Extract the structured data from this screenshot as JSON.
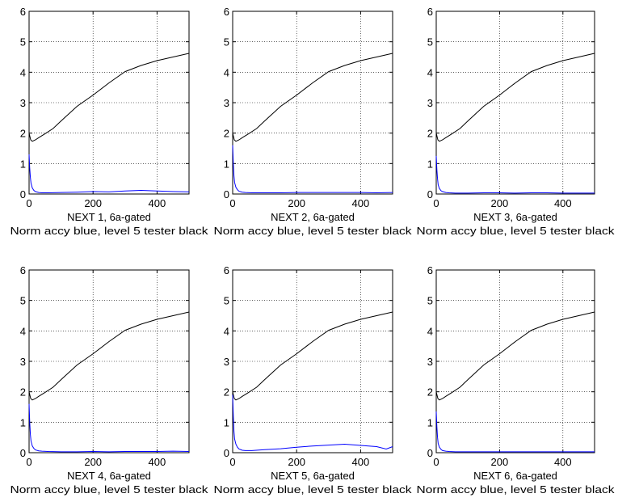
{
  "chart_data": [
    {
      "type": "line",
      "xlabel": "NEXT 1, 6a-gated",
      "xlabel2": "Norm accy blue, level 5 tester black",
      "xlim": [
        0,
        500
      ],
      "ylim": [
        0,
        6
      ],
      "xticks": [
        0,
        200,
        400
      ],
      "yticks": [
        0,
        1,
        2,
        3,
        4,
        5,
        6
      ],
      "grid": true,
      "series": [
        {
          "color": "#000000",
          "x": [
            0,
            5,
            10,
            20,
            30,
            50,
            75,
            100,
            150,
            200,
            250,
            300,
            350,
            400,
            450,
            500
          ],
          "y": [
            2.0,
            1.78,
            1.73,
            1.78,
            1.85,
            1.98,
            2.15,
            2.4,
            2.88,
            3.25,
            3.65,
            4.02,
            4.22,
            4.38,
            4.5,
            4.62
          ]
        },
        {
          "color": "#0000ff",
          "x": [
            0,
            2,
            4,
            6,
            10,
            15,
            20,
            30,
            40,
            60,
            100,
            150,
            200,
            250,
            300,
            350,
            400,
            450,
            500
          ],
          "y": [
            1.3,
            0.85,
            0.55,
            0.35,
            0.2,
            0.12,
            0.08,
            0.05,
            0.04,
            0.04,
            0.05,
            0.06,
            0.08,
            0.07,
            0.1,
            0.12,
            0.1,
            0.08,
            0.07
          ]
        }
      ]
    },
    {
      "type": "line",
      "xlabel": "NEXT 2, 6a-gated",
      "xlabel2": "Norm accy blue, level 5 tester black",
      "xlim": [
        0,
        500
      ],
      "ylim": [
        0,
        6
      ],
      "xticks": [
        0,
        200,
        400
      ],
      "yticks": [
        0,
        1,
        2,
        3,
        4,
        5,
        6
      ],
      "grid": true,
      "series": [
        {
          "color": "#000000",
          "x": [
            0,
            5,
            10,
            20,
            30,
            50,
            75,
            100,
            150,
            200,
            250,
            300,
            350,
            400,
            450,
            500
          ],
          "y": [
            2.0,
            1.78,
            1.73,
            1.78,
            1.85,
            1.98,
            2.15,
            2.4,
            2.88,
            3.25,
            3.65,
            4.02,
            4.22,
            4.38,
            4.5,
            4.62
          ]
        },
        {
          "color": "#0000ff",
          "x": [
            0,
            2,
            4,
            6,
            10,
            15,
            20,
            30,
            40,
            60,
            100,
            150,
            200,
            250,
            300,
            350,
            400,
            450,
            500
          ],
          "y": [
            1.6,
            1.0,
            0.6,
            0.38,
            0.22,
            0.14,
            0.09,
            0.06,
            0.05,
            0.04,
            0.04,
            0.04,
            0.05,
            0.05,
            0.05,
            0.05,
            0.05,
            0.04,
            0.05
          ]
        }
      ]
    },
    {
      "type": "line",
      "xlabel": "NEXT 3, 6a-gated",
      "xlabel2": "Norm accy blue, level 5 tester black",
      "xlim": [
        0,
        500
      ],
      "ylim": [
        0,
        6
      ],
      "xticks": [
        0,
        200,
        400
      ],
      "yticks": [
        0,
        1,
        2,
        3,
        4,
        5,
        6
      ],
      "grid": true,
      "series": [
        {
          "color": "#000000",
          "x": [
            0,
            5,
            10,
            20,
            30,
            50,
            75,
            100,
            150,
            200,
            250,
            300,
            350,
            400,
            450,
            500
          ],
          "y": [
            2.0,
            1.78,
            1.73,
            1.78,
            1.85,
            1.98,
            2.15,
            2.4,
            2.88,
            3.25,
            3.65,
            4.02,
            4.22,
            4.38,
            4.5,
            4.62
          ]
        },
        {
          "color": "#0000ff",
          "x": [
            0,
            2,
            4,
            6,
            10,
            15,
            20,
            30,
            40,
            60,
            100,
            150,
            200,
            250,
            300,
            350,
            400,
            450,
            500
          ],
          "y": [
            1.25,
            0.8,
            0.5,
            0.3,
            0.18,
            0.11,
            0.08,
            0.05,
            0.04,
            0.03,
            0.03,
            0.04,
            0.04,
            0.03,
            0.04,
            0.04,
            0.03,
            0.03,
            0.03
          ]
        }
      ]
    },
    {
      "type": "line",
      "xlabel": "NEXT 4, 6a-gated",
      "xlabel2": "Norm accy blue, level 5 tester black",
      "xlim": [
        0,
        500
      ],
      "ylim": [
        0,
        6
      ],
      "xticks": [
        0,
        200,
        400
      ],
      "yticks": [
        0,
        1,
        2,
        3,
        4,
        5,
        6
      ],
      "grid": true,
      "series": [
        {
          "color": "#000000",
          "x": [
            0,
            5,
            10,
            20,
            30,
            50,
            75,
            100,
            150,
            200,
            250,
            300,
            350,
            400,
            450,
            500
          ],
          "y": [
            2.0,
            1.78,
            1.73,
            1.78,
            1.85,
            1.98,
            2.15,
            2.4,
            2.88,
            3.25,
            3.65,
            4.02,
            4.22,
            4.38,
            4.5,
            4.62
          ]
        },
        {
          "color": "#0000ff",
          "x": [
            0,
            2,
            4,
            6,
            10,
            15,
            20,
            30,
            40,
            60,
            100,
            150,
            200,
            250,
            300,
            350,
            400,
            450,
            500
          ],
          "y": [
            1.6,
            1.0,
            0.6,
            0.38,
            0.22,
            0.14,
            0.09,
            0.06,
            0.05,
            0.04,
            0.03,
            0.03,
            0.04,
            0.03,
            0.04,
            0.04,
            0.04,
            0.05,
            0.04
          ]
        }
      ]
    },
    {
      "type": "line",
      "xlabel": "NEXT 5, 6a-gated",
      "xlabel2": "Norm accy blue, level 5 tester black",
      "xlim": [
        0,
        500
      ],
      "ylim": [
        0,
        6
      ],
      "xticks": [
        0,
        200,
        400
      ],
      "yticks": [
        0,
        1,
        2,
        3,
        4,
        5,
        6
      ],
      "grid": true,
      "series": [
        {
          "color": "#000000",
          "x": [
            0,
            5,
            10,
            20,
            30,
            50,
            75,
            100,
            150,
            200,
            250,
            300,
            350,
            400,
            450,
            500
          ],
          "y": [
            2.0,
            1.78,
            1.73,
            1.78,
            1.85,
            1.98,
            2.15,
            2.4,
            2.88,
            3.25,
            3.65,
            4.02,
            4.22,
            4.38,
            4.5,
            4.62
          ]
        },
        {
          "color": "#0000ff",
          "x": [
            0,
            2,
            4,
            6,
            10,
            15,
            20,
            30,
            40,
            60,
            100,
            150,
            200,
            250,
            300,
            350,
            400,
            450,
            480,
            500
          ],
          "y": [
            1.9,
            1.2,
            0.7,
            0.45,
            0.28,
            0.18,
            0.12,
            0.08,
            0.07,
            0.07,
            0.1,
            0.13,
            0.18,
            0.22,
            0.25,
            0.28,
            0.24,
            0.2,
            0.12,
            0.2
          ]
        }
      ]
    },
    {
      "type": "line",
      "xlabel": "NEXT 6, 6a-gated",
      "xlabel2": "Norm accy blue, level 5 tester black",
      "xlim": [
        0,
        500
      ],
      "ylim": [
        0,
        6
      ],
      "xticks": [
        0,
        200,
        400
      ],
      "yticks": [
        0,
        1,
        2,
        3,
        4,
        5,
        6
      ],
      "grid": true,
      "series": [
        {
          "color": "#000000",
          "x": [
            0,
            5,
            10,
            20,
            30,
            50,
            75,
            100,
            150,
            200,
            250,
            300,
            350,
            400,
            450,
            500
          ],
          "y": [
            2.0,
            1.78,
            1.73,
            1.78,
            1.85,
            1.98,
            2.15,
            2.4,
            2.88,
            3.25,
            3.65,
            4.02,
            4.22,
            4.38,
            4.5,
            4.62
          ]
        },
        {
          "color": "#0000ff",
          "x": [
            0,
            2,
            4,
            6,
            10,
            15,
            20,
            30,
            40,
            60,
            100,
            150,
            200,
            250,
            300,
            350,
            400,
            450,
            500
          ],
          "y": [
            1.35,
            0.85,
            0.5,
            0.3,
            0.18,
            0.11,
            0.07,
            0.05,
            0.04,
            0.03,
            0.03,
            0.03,
            0.03,
            0.03,
            0.03,
            0.03,
            0.03,
            0.03,
            0.03
          ]
        }
      ]
    }
  ]
}
